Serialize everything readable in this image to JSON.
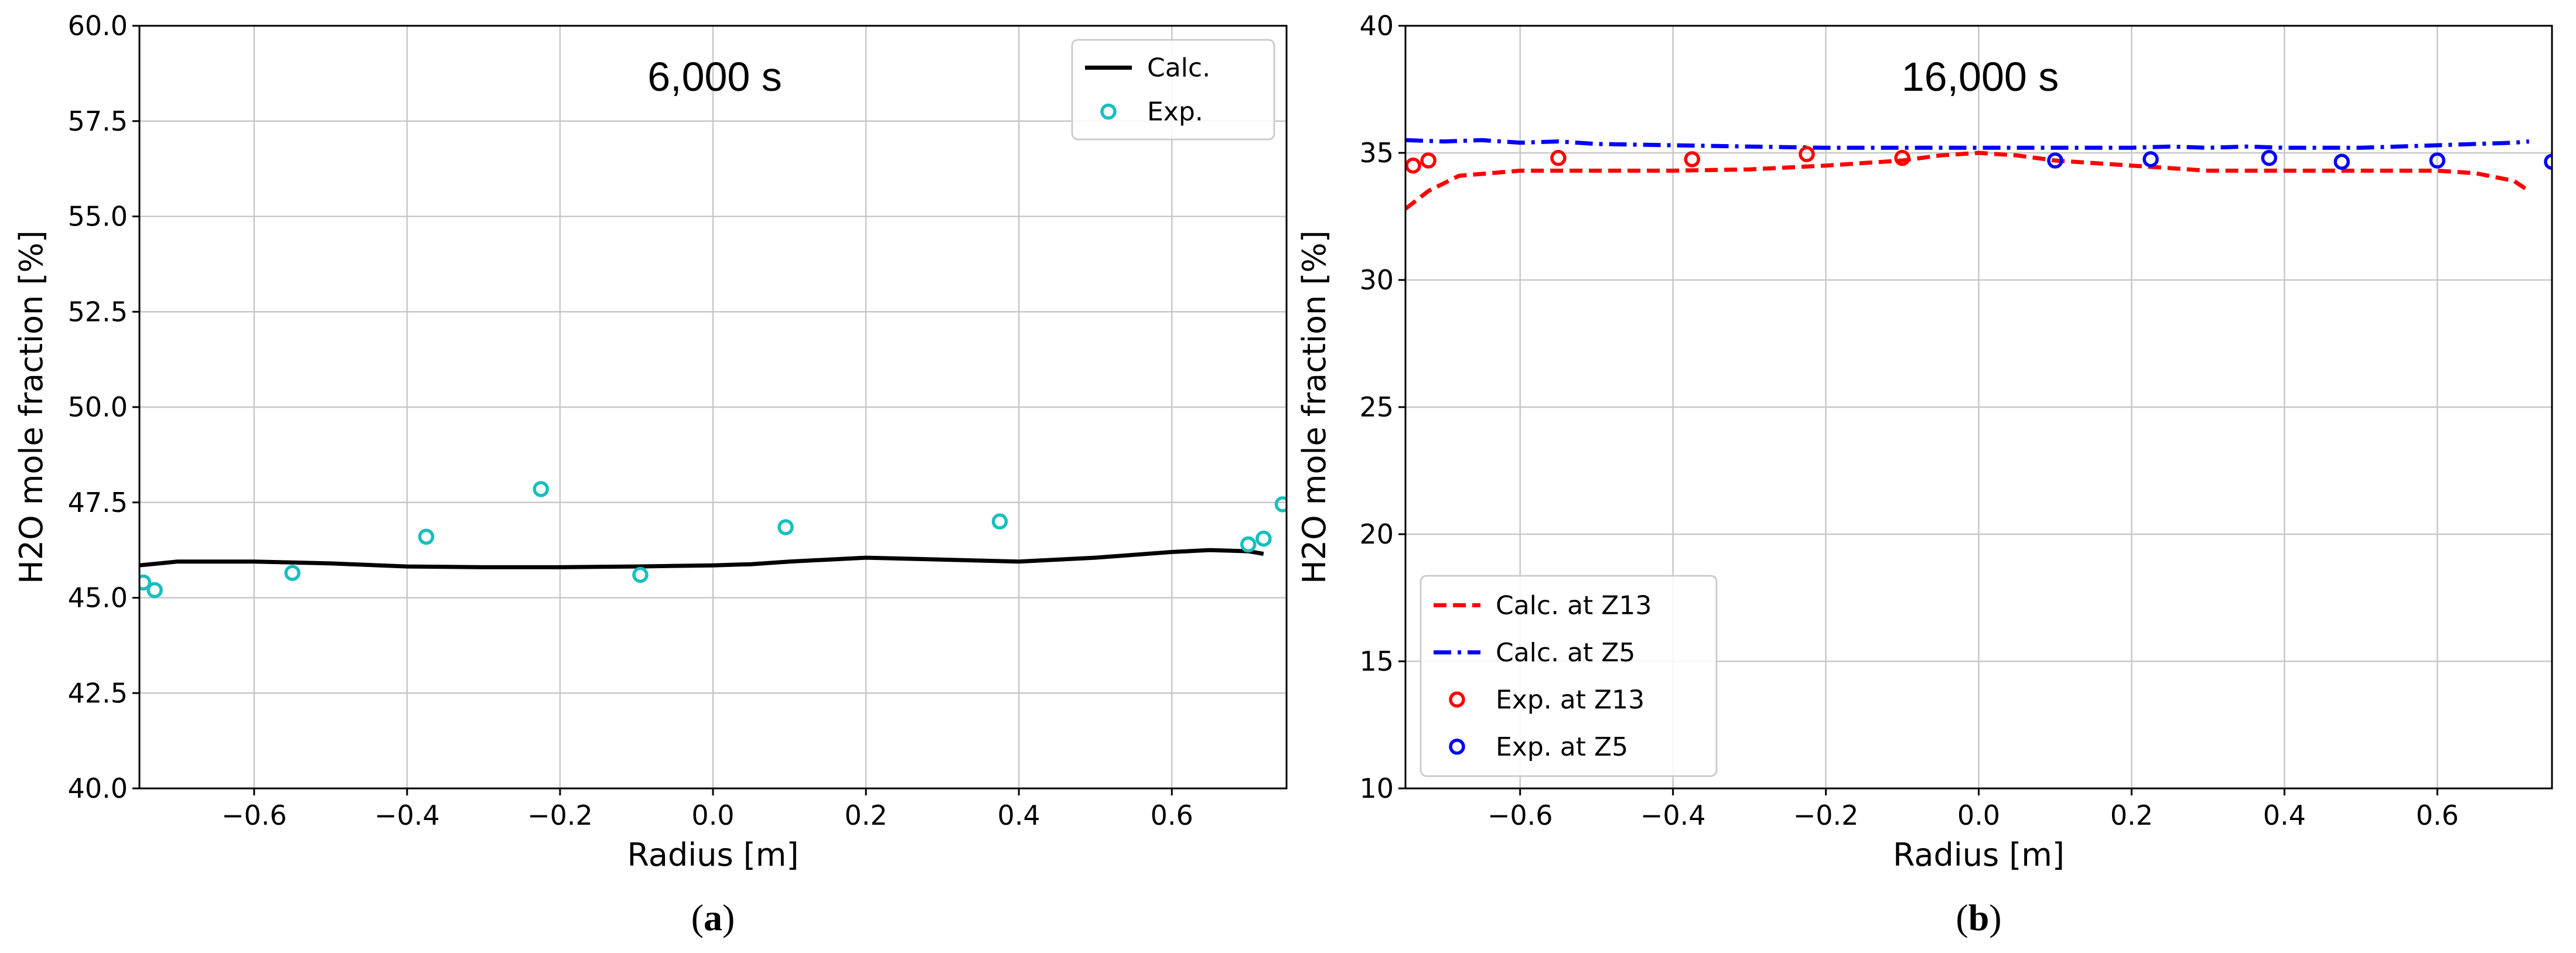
{
  "chart_data": [
    {
      "id": "a",
      "type": "line",
      "caption_letter": "a",
      "time_label": "6,000 s",
      "xlabel": "Radius [m]",
      "ylabel": "H2O mole fraction [%]",
      "xlim": [
        -0.75,
        0.75
      ],
      "ylim": [
        40.0,
        60.0
      ],
      "xticks": [
        -0.6,
        -0.4,
        -0.2,
        0.0,
        0.2,
        0.4,
        0.6
      ],
      "xtick_labels": [
        "−0.6",
        "−0.4",
        "−0.2",
        "0.0",
        "0.2",
        "0.4",
        "0.6"
      ],
      "yticks": [
        40.0,
        42.5,
        45.0,
        47.5,
        50.0,
        52.5,
        55.0,
        57.5,
        60.0
      ],
      "ytick_labels": [
        "40.0",
        "42.5",
        "45.0",
        "47.5",
        "50.0",
        "52.5",
        "55.0",
        "57.5",
        "60.0"
      ],
      "grid": true,
      "legend_position": "top-right",
      "series": [
        {
          "name": "Calc.",
          "kind": "line",
          "style": "solid",
          "color": "#000000",
          "x": [
            -0.75,
            -0.7,
            -0.6,
            -0.5,
            -0.4,
            -0.3,
            -0.2,
            -0.1,
            0.0,
            0.05,
            0.1,
            0.2,
            0.3,
            0.4,
            0.5,
            0.6,
            0.65,
            0.7,
            0.72
          ],
          "y": [
            45.85,
            45.95,
            45.95,
            45.9,
            45.82,
            45.8,
            45.8,
            45.82,
            45.85,
            45.88,
            45.95,
            46.05,
            46.0,
            45.95,
            46.05,
            46.2,
            46.25,
            46.22,
            46.15
          ]
        },
        {
          "name": "Exp.",
          "kind": "scatter",
          "color": "#17bfbf",
          "x": [
            -0.745,
            -0.73,
            -0.55,
            -0.375,
            -0.225,
            -0.095,
            0.095,
            0.375,
            0.7,
            0.72,
            0.745
          ],
          "y": [
            45.4,
            45.2,
            45.65,
            46.6,
            47.85,
            45.6,
            46.85,
            47.0,
            46.4,
            46.55,
            47.45
          ]
        }
      ]
    },
    {
      "id": "b",
      "type": "line",
      "caption_letter": "b",
      "time_label": "16,000 s",
      "xlabel": "Radius [m]",
      "ylabel": "H2O mole fraction [%]",
      "xlim": [
        -0.75,
        0.75
      ],
      "ylim": [
        10,
        40
      ],
      "xticks": [
        -0.6,
        -0.4,
        -0.2,
        0.0,
        0.2,
        0.4,
        0.6
      ],
      "xtick_labels": [
        "−0.6",
        "−0.4",
        "−0.2",
        "0.0",
        "0.2",
        "0.4",
        "0.6"
      ],
      "yticks": [
        10,
        15,
        20,
        25,
        30,
        35,
        40
      ],
      "ytick_labels": [
        "10",
        "15",
        "20",
        "25",
        "30",
        "35",
        "40"
      ],
      "grid": true,
      "legend_position": "bottom-left",
      "series": [
        {
          "name": "Calc. at Z13",
          "kind": "line",
          "style": "dashed",
          "color": "#ff0000",
          "x": [
            -0.75,
            -0.72,
            -0.68,
            -0.6,
            -0.4,
            -0.3,
            -0.2,
            -0.1,
            -0.05,
            0.0,
            0.05,
            0.1,
            0.2,
            0.3,
            0.4,
            0.5,
            0.6,
            0.65,
            0.7,
            0.72
          ],
          "y": [
            32.8,
            33.5,
            34.1,
            34.3,
            34.3,
            34.35,
            34.5,
            34.7,
            34.9,
            35.0,
            34.9,
            34.7,
            34.5,
            34.3,
            34.3,
            34.3,
            34.3,
            34.2,
            33.9,
            33.5
          ]
        },
        {
          "name": "Calc. at Z5",
          "kind": "line",
          "style": "dashdot",
          "color": "#0000ff",
          "x": [
            -0.75,
            -0.7,
            -0.65,
            -0.6,
            -0.55,
            -0.5,
            -0.4,
            -0.3,
            -0.2,
            -0.1,
            0.0,
            0.1,
            0.2,
            0.25,
            0.3,
            0.35,
            0.4,
            0.5,
            0.6,
            0.7,
            0.72
          ],
          "y": [
            35.5,
            35.45,
            35.5,
            35.4,
            35.45,
            35.35,
            35.3,
            35.25,
            35.2,
            35.2,
            35.2,
            35.2,
            35.2,
            35.25,
            35.2,
            35.25,
            35.2,
            35.2,
            35.3,
            35.4,
            35.45
          ]
        },
        {
          "name": "Exp. at Z13",
          "kind": "scatter",
          "color": "#ff0000",
          "x": [
            -0.74,
            -0.72,
            -0.55,
            -0.375,
            -0.225,
            -0.1
          ],
          "y": [
            34.5,
            34.7,
            34.8,
            34.75,
            34.95,
            34.8
          ]
        },
        {
          "name": "Exp. at Z5",
          "kind": "scatter",
          "color": "#0000ff",
          "x": [
            0.1,
            0.225,
            0.38,
            0.475,
            0.6,
            0.75
          ],
          "y": [
            34.7,
            34.75,
            34.8,
            34.65,
            34.7,
            34.65
          ]
        }
      ]
    }
  ]
}
